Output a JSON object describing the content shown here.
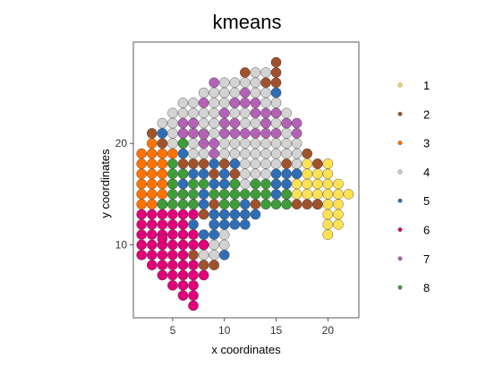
{
  "chart_data": {
    "type": "scatter",
    "title": "kmeans",
    "xlabel": "x coordinates",
    "ylabel": "y coordinates",
    "xlim": [
      1.2,
      23.0
    ],
    "ylim": [
      2.8,
      30.0
    ],
    "xticks": [
      5,
      10,
      15,
      20
    ],
    "yticks": [
      10,
      20
    ],
    "grid": false,
    "legend_position": "right",
    "series": [
      {
        "name": "1",
        "color": "#FFE254",
        "points": [
          [
            18,
            18
          ],
          [
            18,
            17
          ],
          [
            18,
            16
          ],
          [
            17,
            17
          ],
          [
            17,
            16
          ],
          [
            17,
            15
          ],
          [
            18,
            15
          ],
          [
            19,
            17
          ],
          [
            19,
            16
          ],
          [
            19,
            15
          ],
          [
            19,
            14
          ],
          [
            20,
            18
          ],
          [
            20,
            17
          ],
          [
            20,
            16
          ],
          [
            20,
            15
          ],
          [
            20,
            14
          ],
          [
            20,
            13
          ],
          [
            20,
            12
          ],
          [
            20,
            11
          ],
          [
            21,
            16
          ],
          [
            21,
            15
          ],
          [
            21,
            14
          ],
          [
            21,
            13
          ],
          [
            21,
            12
          ],
          [
            22,
            15
          ]
        ]
      },
      {
        "name": "2",
        "color": "#A0522D",
        "points": [
          [
            15,
            28
          ],
          [
            15,
            27
          ],
          [
            14,
            26
          ],
          [
            12,
            27
          ],
          [
            15,
            26
          ],
          [
            3,
            21
          ],
          [
            4,
            20
          ],
          [
            6,
            17
          ],
          [
            6,
            18
          ],
          [
            7,
            18
          ],
          [
            8,
            18
          ],
          [
            9,
            17
          ],
          [
            10,
            18
          ],
          [
            11,
            17
          ],
          [
            16,
            18
          ],
          [
            17,
            18
          ],
          [
            18,
            19
          ],
          [
            19,
            18
          ],
          [
            16,
            15
          ],
          [
            16,
            14
          ],
          [
            17,
            14
          ],
          [
            18,
            14
          ],
          [
            19,
            14
          ],
          [
            5,
            16
          ],
          [
            6,
            15
          ],
          [
            9,
            14
          ],
          [
            8,
            13
          ],
          [
            7,
            14
          ],
          [
            13,
            14
          ],
          [
            7,
            9
          ],
          [
            8,
            8
          ],
          [
            9,
            8
          ]
        ]
      },
      {
        "name": "3",
        "color": "#FF7400",
        "points": [
          [
            2,
            19
          ],
          [
            3,
            19
          ],
          [
            4,
            19
          ],
          [
            2,
            18
          ],
          [
            3,
            18
          ],
          [
            4,
            18
          ],
          [
            2,
            17
          ],
          [
            3,
            17
          ],
          [
            4,
            17
          ],
          [
            2,
            16
          ],
          [
            3,
            16
          ],
          [
            4,
            16
          ],
          [
            2,
            15
          ],
          [
            3,
            15
          ],
          [
            4,
            15
          ],
          [
            2,
            14
          ],
          [
            3,
            14
          ],
          [
            4,
            14
          ],
          [
            3,
            20
          ],
          [
            5,
            19
          ]
        ]
      },
      {
        "name": "4",
        "color": "#D3D3D3",
        "points": [
          [
            10,
            26
          ],
          [
            11,
            26
          ],
          [
            13,
            27
          ],
          [
            14,
            27
          ],
          [
            8,
            25
          ],
          [
            9,
            25
          ],
          [
            10,
            25
          ],
          [
            11,
            25
          ],
          [
            13,
            26
          ],
          [
            12,
            26
          ],
          [
            6,
            24
          ],
          [
            7,
            24
          ],
          [
            9,
            24
          ],
          [
            10,
            24
          ],
          [
            11,
            24
          ],
          [
            13,
            25
          ],
          [
            14,
            25
          ],
          [
            5,
            23
          ],
          [
            6,
            23
          ],
          [
            7,
            23
          ],
          [
            8,
            23
          ],
          [
            9,
            23
          ],
          [
            11,
            23
          ],
          [
            12,
            23
          ],
          [
            14,
            24
          ],
          [
            15,
            24
          ],
          [
            4,
            22
          ],
          [
            5,
            22
          ],
          [
            7,
            22
          ],
          [
            8,
            22
          ],
          [
            9,
            22
          ],
          [
            12,
            22
          ],
          [
            13,
            22
          ],
          [
            14,
            22
          ],
          [
            15,
            22
          ],
          [
            16,
            23
          ],
          [
            16,
            22
          ],
          [
            5,
            21
          ],
          [
            6,
            21
          ],
          [
            7,
            21
          ],
          [
            8,
            21
          ],
          [
            9,
            21
          ],
          [
            16,
            21
          ],
          [
            5,
            20
          ],
          [
            6,
            20
          ],
          [
            7,
            20
          ],
          [
            10,
            20
          ],
          [
            11,
            20
          ],
          [
            12,
            20
          ],
          [
            13,
            20
          ],
          [
            14,
            20
          ],
          [
            15,
            20
          ],
          [
            16,
            20
          ],
          [
            17,
            20
          ],
          [
            7,
            19
          ],
          [
            8,
            19
          ],
          [
            10,
            19
          ],
          [
            11,
            19
          ],
          [
            12,
            19
          ],
          [
            13,
            19
          ],
          [
            14,
            19
          ],
          [
            15,
            19
          ],
          [
            16,
            19
          ],
          [
            17,
            19
          ],
          [
            12,
            18
          ],
          [
            13,
            18
          ],
          [
            14,
            18
          ],
          [
            15,
            18
          ],
          [
            17,
            18
          ],
          [
            12,
            17
          ],
          [
            13,
            17
          ],
          [
            14,
            17
          ],
          [
            12,
            16
          ],
          [
            11,
            16
          ],
          [
            10,
            11
          ],
          [
            9,
            10
          ],
          [
            10,
            10
          ],
          [
            8,
            9
          ],
          [
            9,
            9
          ]
        ]
      },
      {
        "name": "5",
        "color": "#2F6EB5",
        "points": [
          [
            15,
            25
          ],
          [
            15,
            23
          ],
          [
            4,
            21
          ],
          [
            6,
            19
          ],
          [
            8,
            17
          ],
          [
            9,
            18
          ],
          [
            10,
            17
          ],
          [
            11,
            18
          ],
          [
            6,
            16
          ],
          [
            7,
            17
          ],
          [
            9,
            16
          ],
          [
            10,
            16
          ],
          [
            15,
            17
          ],
          [
            16,
            17
          ],
          [
            17,
            17
          ],
          [
            15,
            16
          ],
          [
            15,
            15
          ],
          [
            16,
            16
          ],
          [
            8,
            15
          ],
          [
            8,
            14
          ],
          [
            12,
            14
          ],
          [
            10,
            13
          ],
          [
            11,
            13
          ],
          [
            12,
            13
          ],
          [
            13,
            13
          ],
          [
            9,
            13
          ],
          [
            10,
            12
          ],
          [
            11,
            12
          ],
          [
            12,
            12
          ],
          [
            9,
            12
          ],
          [
            8,
            11
          ],
          [
            9,
            11
          ],
          [
            8,
            10
          ],
          [
            10,
            9
          ],
          [
            7,
            12
          ]
        ]
      },
      {
        "name": "6",
        "color": "#E10079",
        "points": [
          [
            2,
            13
          ],
          [
            3,
            13
          ],
          [
            4,
            13
          ],
          [
            5,
            13
          ],
          [
            6,
            13
          ],
          [
            7,
            13
          ],
          [
            2,
            12
          ],
          [
            3,
            12
          ],
          [
            4,
            12
          ],
          [
            5,
            12
          ],
          [
            6,
            12
          ],
          [
            2,
            11
          ],
          [
            3,
            11
          ],
          [
            4,
            11
          ],
          [
            6,
            11
          ],
          [
            7,
            11
          ],
          [
            2,
            10
          ],
          [
            3,
            10
          ],
          [
            4,
            10
          ],
          [
            6,
            10
          ],
          [
            7,
            10
          ],
          [
            2,
            9
          ],
          [
            3,
            9
          ],
          [
            4,
            9
          ],
          [
            5,
            9
          ],
          [
            6,
            9
          ],
          [
            8,
            10
          ],
          [
            3,
            8
          ],
          [
            4,
            8
          ],
          [
            5,
            8
          ],
          [
            6,
            8
          ],
          [
            7,
            8
          ],
          [
            4,
            7
          ],
          [
            5,
            7
          ],
          [
            6,
            7
          ],
          [
            7,
            7
          ],
          [
            8,
            7
          ],
          [
            5,
            6
          ],
          [
            6,
            6
          ],
          [
            7,
            6
          ],
          [
            6,
            5
          ],
          [
            7,
            5
          ],
          [
            7,
            4
          ],
          [
            4,
            10.6
          ],
          [
            5,
            11
          ],
          [
            5,
            10
          ]
        ]
      },
      {
        "name": "7",
        "color": "#B462B5",
        "points": [
          [
            9,
            26
          ],
          [
            11,
            24
          ],
          [
            12,
            25
          ],
          [
            12,
            24
          ],
          [
            8,
            24
          ],
          [
            10,
            23
          ],
          [
            13,
            24
          ],
          [
            13,
            23
          ],
          [
            14,
            23
          ],
          [
            6,
            22
          ],
          [
            10,
            22
          ],
          [
            11,
            22
          ],
          [
            6,
            21
          ],
          [
            10,
            21
          ],
          [
            11,
            21
          ],
          [
            12,
            21
          ],
          [
            13,
            21
          ],
          [
            14,
            21
          ],
          [
            15,
            21
          ],
          [
            8,
            20
          ],
          [
            9,
            20
          ],
          [
            8,
            20.9
          ],
          [
            9,
            19
          ],
          [
            16,
            22
          ],
          [
            17,
            22
          ],
          [
            17,
            21
          ],
          [
            14,
            22
          ],
          [
            15,
            23
          ],
          [
            7,
            22
          ],
          [
            7,
            21
          ]
        ]
      },
      {
        "name": "8",
        "color": "#3F9C3B",
        "points": [
          [
            6,
            20
          ],
          [
            5,
            18
          ],
          [
            5,
            17
          ],
          [
            6,
            17
          ],
          [
            7,
            16
          ],
          [
            8,
            16
          ],
          [
            11,
            16
          ],
          [
            12,
            15
          ],
          [
            13,
            15
          ],
          [
            14,
            15
          ],
          [
            11,
            15
          ],
          [
            10,
            15
          ],
          [
            9,
            15
          ],
          [
            5,
            15
          ],
          [
            6,
            14
          ],
          [
            5,
            14
          ],
          [
            4,
            14
          ],
          [
            10,
            14
          ],
          [
            11,
            14
          ],
          [
            14,
            14
          ],
          [
            15,
            14
          ],
          [
            13,
            16
          ],
          [
            14,
            16
          ],
          [
            16,
            14
          ],
          [
            16,
            15
          ],
          [
            5,
            16
          ],
          [
            7,
            15
          ],
          [
            6,
            15
          ],
          [
            7,
            14
          ]
        ]
      }
    ]
  }
}
